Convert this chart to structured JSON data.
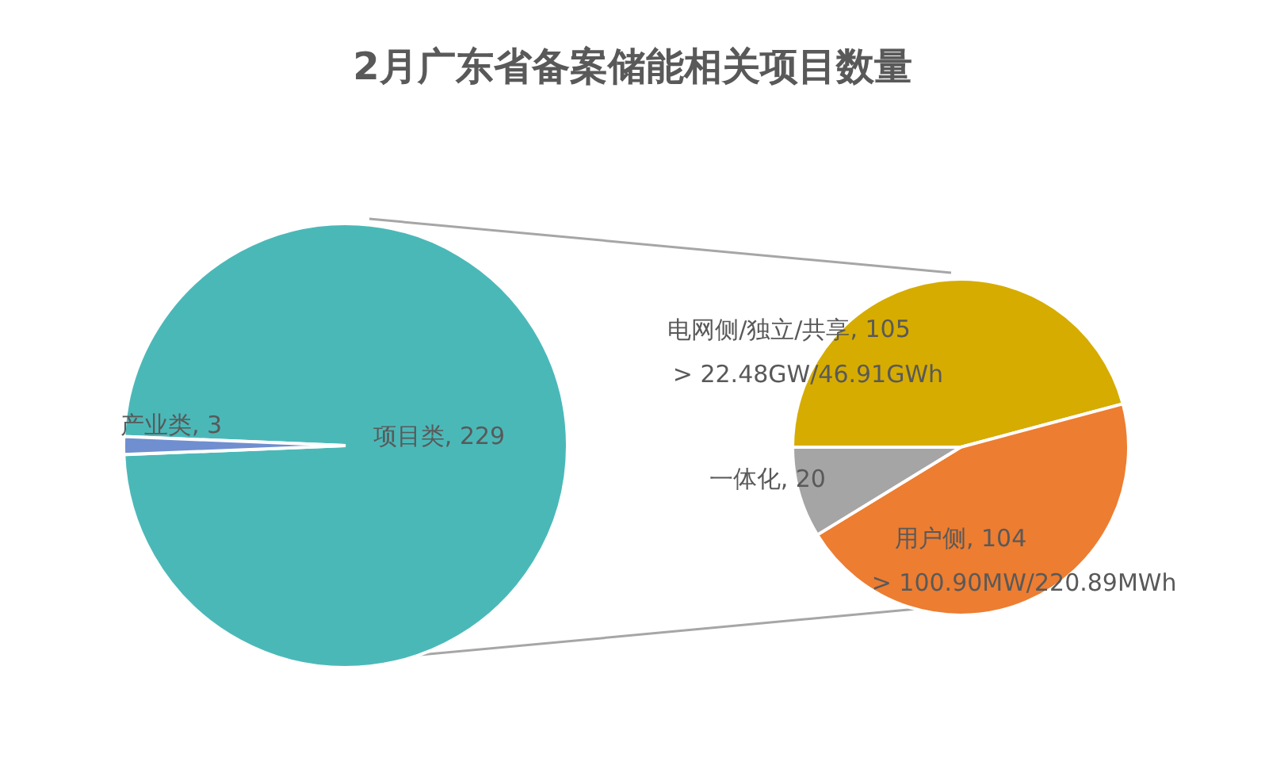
{
  "chart_data": [
    {
      "type": "pie",
      "title": "2月广东省备案储能相关项目数量",
      "categories": [
        "项目类",
        "产业类"
      ],
      "values": [
        229,
        3
      ],
      "colors": [
        "#4bb8b8",
        "#6f8fd0"
      ],
      "value_labels": [
        ", 229",
        ", 3"
      ]
    },
    {
      "type": "pie",
      "categories": [
        "电网侧/独立/共享",
        "用户侧",
        "一体化"
      ],
      "values": [
        105,
        104,
        20
      ],
      "colors": [
        "#d6ac00",
        "#ed7d31",
        "#a5a5a5"
      ],
      "value_labels": [
        ", 105",
        ", 104",
        ", 20"
      ],
      "annotations": [
        "> 22.48GW/46.91GWh",
        "> 100.90MW/220.89MWh"
      ]
    }
  ]
}
